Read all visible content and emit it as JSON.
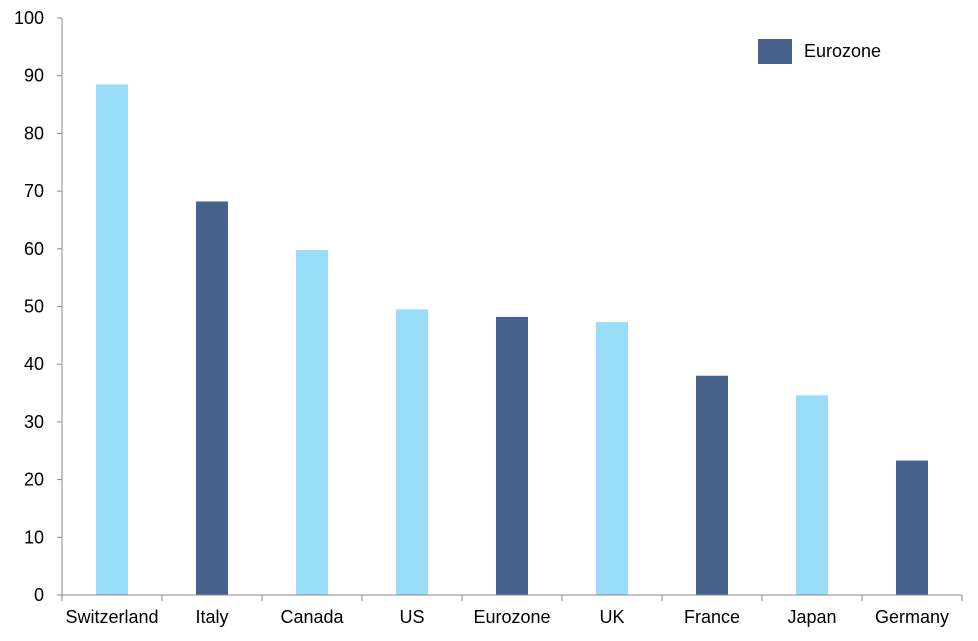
{
  "colors": {
    "eurozone": "#46628C",
    "other": "#99DDF8",
    "axis": "#888888",
    "text": "#000000",
    "background": "#FFFFFF"
  },
  "chart_data": {
    "type": "bar",
    "title": "",
    "xlabel": "",
    "ylabel": "",
    "ylim": [
      0,
      100
    ],
    "y_ticks": [
      0,
      10,
      20,
      30,
      40,
      50,
      60,
      70,
      80,
      90,
      100
    ],
    "grid": false,
    "categories": [
      "Switzerland",
      "Italy",
      "Canada",
      "US",
      "Eurozone",
      "UK",
      "France",
      "Japan",
      "Germany"
    ],
    "values": [
      88.5,
      68.2,
      59.8,
      49.5,
      48.2,
      47.3,
      38.0,
      34.6,
      23.3
    ],
    "groups": [
      "other",
      "eurozone",
      "other",
      "other",
      "eurozone",
      "other",
      "eurozone",
      "other",
      "eurozone"
    ],
    "legend": {
      "position": "top-right",
      "entries": [
        {
          "label": "Eurozone",
          "color_key": "eurozone"
        }
      ]
    }
  }
}
